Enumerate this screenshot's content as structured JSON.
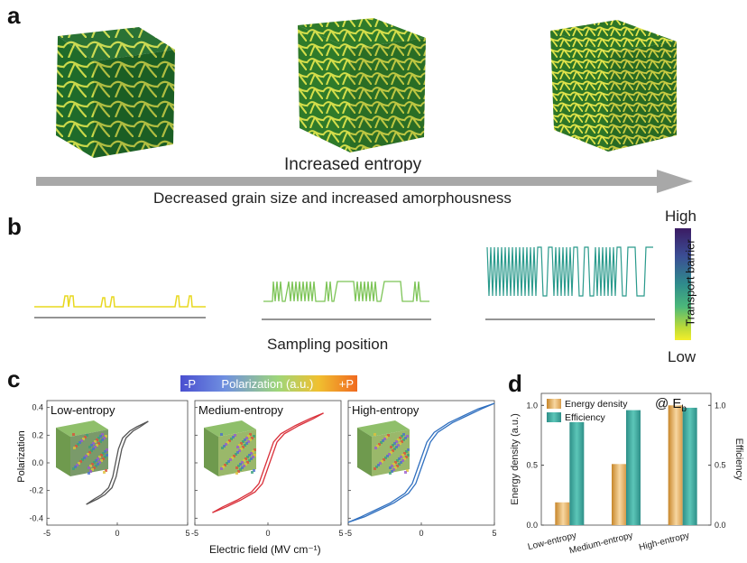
{
  "panel_a": {
    "letter": "a",
    "arrow_top_label": "Increased entropy",
    "arrow_bottom_label": "Decreased grain size and increased amorphousness"
  },
  "panel_b": {
    "letter": "b",
    "xlabel": "Sampling position",
    "colorbar": {
      "title": "Transport barrier",
      "high": "High",
      "low": "Low"
    }
  },
  "panel_c": {
    "letter": "c",
    "colorbar": {
      "title": "Polarization (a.u.)",
      "neg": "-P",
      "pos": "+P"
    },
    "ylabel": "Polarization",
    "xlabel": "Electric field (MV cm⁻¹)",
    "subplots": [
      {
        "title": "Low-entropy",
        "line_color": "#555555"
      },
      {
        "title": "Medium-entropy",
        "line_color": "#d9303a"
      },
      {
        "title": "High-entropy",
        "line_color": "#2f6fbf"
      }
    ],
    "y_ticks": [
      "0.4",
      "0.2",
      "0.0",
      "-0.2",
      "-0.4"
    ],
    "x_ticks": [
      "-5",
      "0",
      "5"
    ]
  },
  "panel_d": {
    "letter": "d",
    "annotation": "@ E",
    "annotation_sub": "b",
    "ylabel_left": "Energy density (a.u.)",
    "ylabel_right": "Efficiency",
    "legend": [
      "Energy density",
      "Efficiency"
    ],
    "left_ticks": [
      "1.0",
      "0.5",
      "0.0"
    ],
    "right_ticks": [
      "1.0",
      "0.5",
      "0.0"
    ]
  },
  "chart_data": [
    {
      "type": "line",
      "title": "Low-entropy",
      "xlabel": "Electric field (MV cm⁻¹)",
      "ylabel": "Polarization",
      "xlim": [
        -5,
        5
      ],
      "ylim": [
        -0.45,
        0.45
      ],
      "x": [
        -2.2,
        -1.5,
        -1.0,
        -0.5,
        -0.2,
        0.0,
        0.2,
        0.5,
        1.0,
        1.5,
        2.2
      ],
      "y": [
        -0.3,
        -0.26,
        -0.23,
        -0.18,
        -0.1,
        0.0,
        0.1,
        0.18,
        0.23,
        0.26,
        0.3
      ]
    },
    {
      "type": "line",
      "title": "Medium-entropy",
      "xlabel": "Electric field (MV cm⁻¹)",
      "ylabel": "Polarization",
      "xlim": [
        -5,
        5
      ],
      "ylim": [
        -0.45,
        0.45
      ],
      "x": [
        -3.8,
        -3.0,
        -2.0,
        -1.0,
        -0.5,
        0.0,
        0.5,
        1.0,
        2.0,
        3.0,
        3.8
      ],
      "y": [
        -0.36,
        -0.32,
        -0.27,
        -0.21,
        -0.15,
        0.0,
        0.15,
        0.21,
        0.27,
        0.32,
        0.36
      ]
    },
    {
      "type": "line",
      "title": "High-entropy",
      "xlabel": "Electric field (MV cm⁻¹)",
      "ylabel": "Polarization",
      "xlim": [
        -5,
        5
      ],
      "ylim": [
        -0.45,
        0.45
      ],
      "x": [
        -5.0,
        -4.0,
        -3.0,
        -2.0,
        -1.0,
        -0.5,
        0.0,
        0.5,
        1.0,
        2.0,
        3.0,
        4.0,
        5.0
      ],
      "y": [
        -0.43,
        -0.39,
        -0.34,
        -0.29,
        -0.22,
        -0.15,
        0.0,
        0.15,
        0.22,
        0.29,
        0.34,
        0.39,
        0.43
      ]
    },
    {
      "type": "bar",
      "categories": [
        "Low-entropy",
        "Medium-entropy",
        "High-entropy"
      ],
      "series": [
        {
          "name": "Energy density",
          "values": [
            0.19,
            0.51,
            1.0
          ]
        },
        {
          "name": "Efficiency",
          "values": [
            0.86,
            0.96,
            0.98
          ]
        }
      ],
      "ylabel": "Energy density (a.u.)",
      "y2label": "Efficiency",
      "ylim": [
        0,
        1.1
      ]
    }
  ]
}
